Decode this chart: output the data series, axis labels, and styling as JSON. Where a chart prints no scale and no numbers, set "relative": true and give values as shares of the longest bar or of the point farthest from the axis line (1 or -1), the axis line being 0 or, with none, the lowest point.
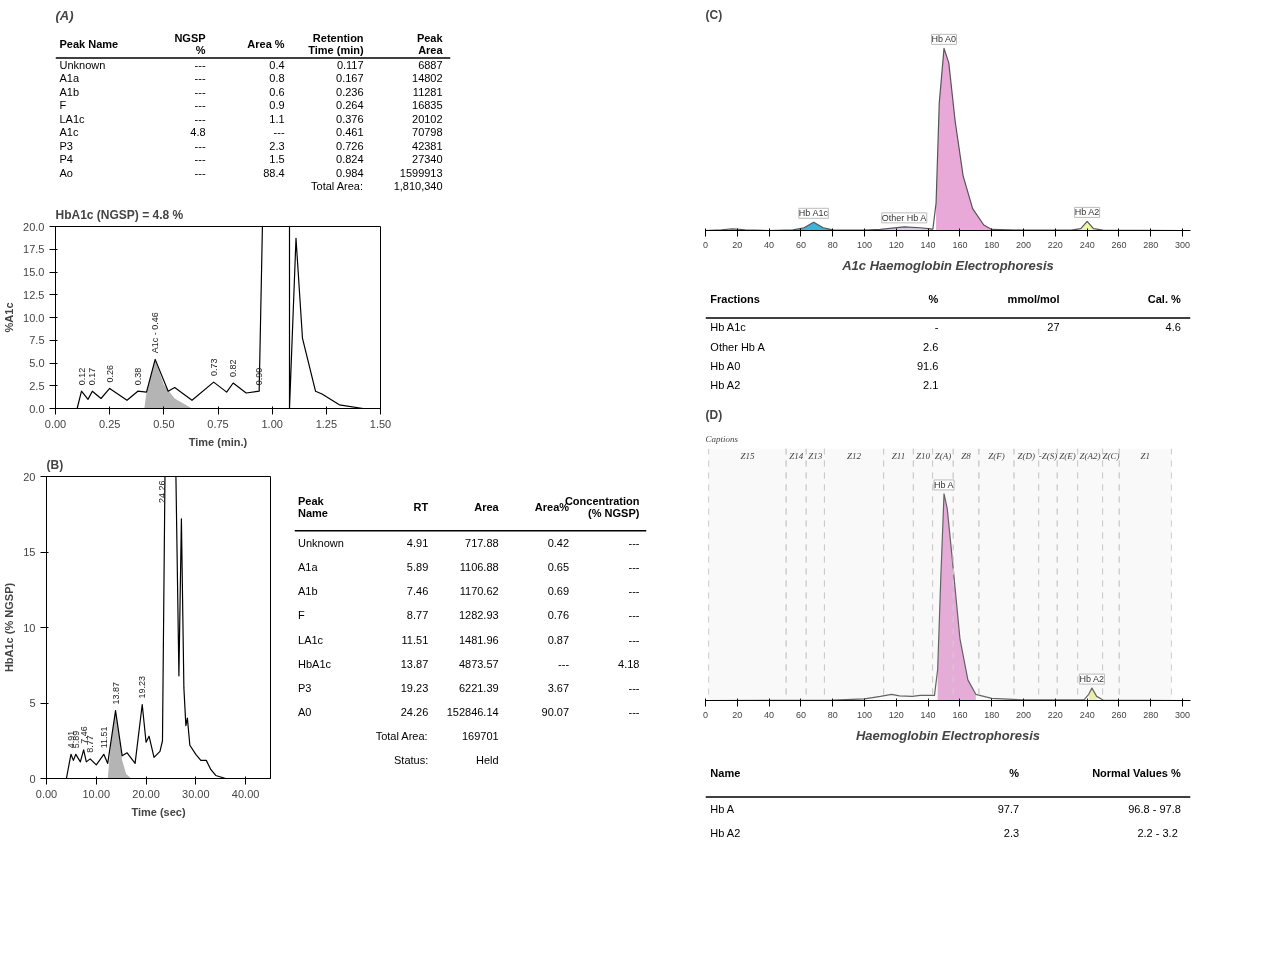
{
  "chart_data": [
    {
      "type": "other",
      "title": "(A)",
      "categories": [
        "Peak Name",
        "NGSP\n%",
        "Area %",
        "Retention\nTime (min)",
        "Peak\nArea"
      ],
      "annotations": [
        "Unknown",
        "---",
        "0.4",
        "0.117",
        "6887",
        "A1a",
        "---",
        "0.8",
        "0.167",
        "14802",
        "A1b",
        "---",
        "0.6",
        "0.236",
        "11281",
        "F",
        "---",
        "0.9",
        "0.264",
        "16835",
        "LA1c",
        "---",
        "1.1",
        "0.376",
        "20102",
        "A1c",
        "4.8",
        "---",
        "0.461",
        "70798",
        "P3",
        "---",
        "2.3",
        "0.726",
        "42381",
        "P4",
        "---",
        "1.5",
        "0.824",
        "27340",
        "Ao",
        "---",
        "88.4",
        "0.984",
        "1599913",
        null,
        null,
        null,
        "Total Area:",
        "1,810,340"
      ]
    },
    {
      "type": "line",
      "title": "HbA1c (NGSP) = 4.8 %",
      "xlabel": "Time (min.)",
      "ylabel": "%A1c",
      "xlim": [
        0,
        1.5
      ],
      "ylim": [
        0,
        20
      ],
      "xticks": [
        {
          "value": 0,
          "label": "0.00"
        },
        {
          "value": 0.25,
          "label": "0.25"
        },
        {
          "value": 0.5,
          "label": "0.50"
        },
        {
          "value": 0.75,
          "label": "0.75"
        },
        {
          "value": 1.0,
          "label": "1.00"
        },
        {
          "value": 1.25,
          "label": "1.25"
        },
        {
          "value": 1.5,
          "label": "1.50"
        }
      ],
      "yticks": [
        {
          "value": 0,
          "label": "0.0"
        },
        {
          "value": 2.5,
          "label": "2.5"
        },
        {
          "value": 5,
          "label": "5.0"
        },
        {
          "value": 7.5,
          "label": "7.5"
        },
        {
          "value": 10,
          "label": "10.0"
        },
        {
          "value": 12.5,
          "label": "12.5"
        },
        {
          "value": 15,
          "label": "15.0"
        },
        {
          "value": 17.5,
          "label": "17.5"
        },
        {
          "value": 20,
          "label": "20.0"
        }
      ],
      "series": [
        {
          "type": "area",
          "color": "#b4b4b4",
          "x": [
            0.41,
            0.42,
            0.46,
            0.5,
            0.55,
            0.6,
            0.63
          ],
          "values": [
            0,
            1.8,
            5.4,
            2.6,
            1.1,
            0.4,
            0
          ]
        },
        {
          "color": "#000000",
          "x": [
            0.1,
            0.12,
            0.15,
            0.17,
            0.21,
            0.25,
            0.33,
            0.38,
            0.42,
            0.46,
            0.52,
            0.55,
            0.63,
            0.73,
            0.79,
            0.82,
            0.88,
            0.94,
            0.955,
            1.0,
            1.08,
            1.08,
            1.11,
            1.14,
            1.2,
            1.23,
            1.31,
            1.42
          ],
          "values": [
            0,
            1.9,
            1.0,
            1.9,
            1.1,
            2.2,
            0.9,
            1.9,
            1.8,
            5.4,
            1.9,
            2.3,
            0.9,
            2.9,
            1.8,
            2.8,
            1.7,
            1.9,
            20,
            null,
            20,
            0,
            18.7,
            7.7,
            1.9,
            1.6,
            0.4,
            0
          ]
        }
      ],
      "annotations": [
        {
          "text": "0.12",
          "x": 0.12,
          "y": 1.9
        },
        {
          "text": "0.17",
          "x": 0.17,
          "y": 1.9
        },
        {
          "text": "0.26",
          "x": 0.25,
          "y": 2.2
        },
        {
          "text": "0.38",
          "x": 0.38,
          "y": 1.9
        },
        {
          "text": "A1c - 0.46",
          "x": 0.46,
          "y": 5.4
        },
        {
          "text": "0.73",
          "x": 0.73,
          "y": 2.9
        },
        {
          "text": "0.82",
          "x": 0.82,
          "y": 2.8
        },
        {
          "text": "0.90",
          "x": 0.94,
          "y": 1.9
        }
      ]
    },
    {
      "type": "line",
      "title": "(B)",
      "xlabel": "Time (sec)",
      "ylabel": "HbA1c (% NGSP)",
      "xlim": [
        0,
        45
      ],
      "ylim": [
        0,
        20
      ],
      "xticks": [
        {
          "value": 0,
          "label": "0.00"
        },
        {
          "value": 10,
          "label": "10.00"
        },
        {
          "value": 20,
          "label": "20.00"
        },
        {
          "value": 30,
          "label": "30.00"
        },
        {
          "value": 40,
          "label": "40.00"
        }
      ],
      "yticks": [
        0,
        5,
        10,
        15,
        20
      ],
      "series": [
        {
          "type": "area",
          "color": "#b4b4b4",
          "x": [
            12.3,
            13.0,
            13.87,
            14.5,
            15.2,
            16.0,
            17.0
          ],
          "values": [
            0,
            2.5,
            4.5,
            3.0,
            1.2,
            0.3,
            0
          ]
        },
        {
          "color": "#000000",
          "x": [
            0,
            4.0,
            4.91,
            5.4,
            5.89,
            6.8,
            7.46,
            8.0,
            8.77,
            10.0,
            11.51,
            12.3,
            13.87,
            15.2,
            16.2,
            17.8,
            19.23,
            20.0,
            20.6,
            21.6,
            22.8,
            23.3,
            23.8,
            24.26,
            25.0,
            26.0,
            26.6,
            27.1,
            27.6,
            28.0,
            28.3,
            28.8,
            30,
            31,
            32.1,
            33,
            34,
            36,
            45
          ],
          "values": [
            0,
            0,
            1.6,
            1.2,
            1.6,
            1.1,
            1.9,
            1.1,
            1.3,
            0.9,
            1.6,
            1.0,
            4.5,
            1.5,
            1.7,
            1.0,
            4.9,
            2.4,
            2.8,
            1.4,
            1.8,
            2.5,
            20,
            20,
            null,
            20,
            6.8,
            17.2,
            6,
            3.5,
            4.0,
            2.2,
            1.6,
            1.2,
            1.2,
            0.6,
            0.2,
            0,
            0
          ]
        }
      ],
      "annotations": [
        {
          "text": "4.91",
          "x": 4.91,
          "y": 1.6
        },
        {
          "text": "5.89",
          "x": 5.89,
          "y": 1.6
        },
        {
          "text": "7.46",
          "x": 7.46,
          "y": 1.9
        },
        {
          "text": "8.77",
          "x": 8.77,
          "y": 1.3
        },
        {
          "text": "11.51",
          "x": 11.51,
          "y": 1.6
        },
        {
          "text": "13.87",
          "x": 13.87,
          "y": 4.5
        },
        {
          "text": "19.23",
          "x": 19.23,
          "y": 4.9
        },
        {
          "text": "24.26",
          "x": 24.26,
          "y": 20
        }
      ]
    },
    {
      "type": "other",
      "categories": [
        "Peak\nName",
        "RT",
        "Area",
        "Area%",
        "Concentration\n(% NGSP)"
      ],
      "annotations": [
        "Unknown",
        "4.91",
        "717.88",
        "0.42",
        "---",
        "A1a",
        "5.89",
        "1106.88",
        "0.65",
        "---",
        "A1b",
        "7.46",
        "1170.62",
        "0.69",
        "---",
        "F",
        "8.77",
        "1282.93",
        "0.76",
        "---",
        "LA1c",
        "11.51",
        "1481.96",
        "0.87",
        "---",
        "HbA1c",
        "13.87",
        "4873.57",
        "---",
        "4.18",
        "P3",
        "19.23",
        "6221.39",
        "3.67",
        "---",
        "A0",
        "24.26",
        "152846.14",
        "90.07",
        "---",
        null,
        "Total Area:",
        "169701",
        null,
        null,
        null,
        "Status:",
        "Held",
        null,
        null
      ]
    },
    {
      "type": "line",
      "title": "(C)",
      "relative": true,
      "xlim": [
        0,
        305
      ],
      "xticks": [
        0,
        20,
        40,
        60,
        80,
        100,
        120,
        140,
        160,
        180,
        200,
        220,
        240,
        260,
        280,
        300
      ],
      "series": [
        {
          "type": "area",
          "color": "#3cb4e0",
          "x": [
            55,
            62,
            68,
            74,
            80
          ],
          "values": [
            0.003,
            0.015,
            0.045,
            0.015,
            0.003
          ]
        },
        {
          "type": "area",
          "color": "#d8c8e8",
          "x": [
            110,
            125,
            135,
            143
          ],
          "values": [
            0.006,
            0.02,
            0.015,
            0.008
          ]
        },
        {
          "type": "area",
          "color": "#e8a8d8",
          "x": [
            145,
            147,
            150,
            153,
            157,
            162,
            168,
            175,
            180
          ],
          "values": [
            0.15,
            0.7,
            1.0,
            0.92,
            0.6,
            0.3,
            0.12,
            0.03,
            0.006
          ]
        },
        {
          "type": "area",
          "color": "#eef5a8",
          "x": [
            236,
            240,
            244
          ],
          "values": [
            0.01,
            0.05,
            0.01
          ]
        },
        {
          "color": "#555555",
          "x": [
            0,
            10,
            17,
            25,
            40,
            55,
            62,
            68,
            74,
            80,
            100,
            110,
            125,
            135,
            143,
            145,
            147,
            150,
            153,
            157,
            162,
            168,
            175,
            180,
            200,
            230,
            236,
            240,
            244,
            250,
            300
          ],
          "values": [
            0,
            0.004,
            0.009,
            0.004,
            0,
            0.003,
            0.015,
            0.045,
            0.015,
            0.003,
            0.002,
            0.006,
            0.02,
            0.015,
            0.008,
            0.15,
            0.7,
            1.0,
            0.92,
            0.6,
            0.3,
            0.12,
            0.03,
            0.006,
            0.002,
            0.002,
            0.01,
            0.05,
            0.01,
            0.002,
            0
          ]
        }
      ],
      "annotations": [
        {
          "text": "Hb A1c",
          "x": 68,
          "y": 0.045
        },
        {
          "text": "Other Hb A",
          "x": 125,
          "y": 0.02
        },
        {
          "text": "Hb A0",
          "x": 150,
          "y": 1.0
        },
        {
          "text": "Hb A2",
          "x": 240,
          "y": 0.05
        }
      ]
    },
    {
      "type": "other",
      "title": "A1c Haemoglobin Electrophoresis",
      "categories": [
        "Fractions",
        "%",
        "mmol/mol",
        "Cal. %"
      ],
      "annotations": [
        "Hb A1c",
        "-",
        "27",
        "4.6",
        "Other Hb A",
        "2.6",
        null,
        null,
        "Hb A0",
        "91.6",
        null,
        null,
        "Hb A2",
        "2.1",
        null,
        null
      ]
    },
    {
      "type": "line",
      "title": "(D)",
      "relative": true,
      "xlim": [
        0,
        305
      ],
      "xticks": [
        0,
        20,
        40,
        60,
        80,
        100,
        120,
        140,
        160,
        180,
        200,
        220,
        240,
        260,
        280,
        300
      ],
      "bands": [
        {
          "axis": "x",
          "from": 2,
          "to": 50.7,
          "label": "Z15",
          "color": "#cccccc"
        },
        {
          "axis": "x",
          "from": 50.7,
          "to": 63.3,
          "label": "Z14",
          "color": "#cccccc"
        },
        {
          "axis": "x",
          "from": 63.3,
          "to": 74.8,
          "label": "Z13",
          "color": "#cccccc"
        },
        {
          "axis": "x",
          "from": 74.8,
          "to": 112,
          "label": "Z12",
          "color": "#cccccc"
        },
        {
          "axis": "x",
          "from": 112,
          "to": 130.7,
          "label": "Z11",
          "color": "#cccccc"
        },
        {
          "axis": "x",
          "from": 130.7,
          "to": 142.8,
          "label": "Z10",
          "color": "#cccccc"
        },
        {
          "axis": "x",
          "from": 142.8,
          "to": 155.8,
          "label": "Z(A)",
          "color": "#cccccc"
        },
        {
          "axis": "x",
          "from": 155.8,
          "to": 171.9,
          "label": "Z8",
          "color": "#cccccc"
        },
        {
          "axis": "x",
          "from": 171.9,
          "to": 194,
          "label": "Z(F)",
          "color": "#cccccc"
        },
        {
          "axis": "x",
          "from": 194,
          "to": 209.5,
          "label": "Z(D)",
          "color": "#cccccc"
        },
        {
          "axis": "x",
          "from": 209.5,
          "to": 221.2,
          "label": "-Z(S)",
          "color": "#cccccc"
        },
        {
          "axis": "x",
          "from": 221.2,
          "to": 234,
          "label": "Z(E)",
          "color": "#cccccc"
        },
        {
          "axis": "x",
          "from": 234,
          "to": 249.7,
          "label": "Z(A2)",
          "color": "#cccccc"
        },
        {
          "axis": "x",
          "from": 249.7,
          "to": 260.2,
          "label": "Z(C)",
          "color": "#cccccc"
        },
        {
          "axis": "x",
          "from": 260.2,
          "to": 293,
          "label": "Z1",
          "color": "#cccccc"
        }
      ],
      "series": [
        {
          "type": "area",
          "color": "#e8a8d8",
          "x": [
            146,
            148,
            150,
            152,
            155,
            160,
            165,
            170
          ],
          "values": [
            0.15,
            0.6,
            1.0,
            0.93,
            0.7,
            0.3,
            0.1,
            0.03
          ]
        },
        {
          "type": "area",
          "color": "#eef5a8",
          "x": [
            241,
            243,
            246
          ],
          "values": [
            0.03,
            0.06,
            0.02
          ]
        },
        {
          "color": "#555555",
          "x": [
            0,
            80,
            100,
            110,
            117,
            122,
            130,
            135,
            144,
            146,
            148,
            150,
            152,
            155,
            160,
            165,
            170,
            180,
            200,
            238,
            241,
            243,
            246,
            250,
            300
          ],
          "values": [
            0,
            0.002,
            0.008,
            0.02,
            0.03,
            0.022,
            0.02,
            0.025,
            0.025,
            0.15,
            0.6,
            1.0,
            0.93,
            0.7,
            0.3,
            0.1,
            0.03,
            0.01,
            0.003,
            0.003,
            0.03,
            0.06,
            0.02,
            0.002,
            0
          ]
        }
      ],
      "annotations": [
        "Captions",
        {
          "text": "Hb A",
          "x": 150,
          "y": 1.0
        },
        {
          "text": "Hb A2",
          "x": 243,
          "y": 0.06
        }
      ]
    },
    {
      "type": "other",
      "title": "Haemoglobin Electrophoresis",
      "categories": [
        "Name",
        "%",
        "Normal Values %"
      ],
      "annotations": [
        "Hb A",
        "97.7",
        "96.8 - 97.8",
        "Hb A2",
        "2.3",
        "2.2 -  3.2"
      ]
    }
  ]
}
